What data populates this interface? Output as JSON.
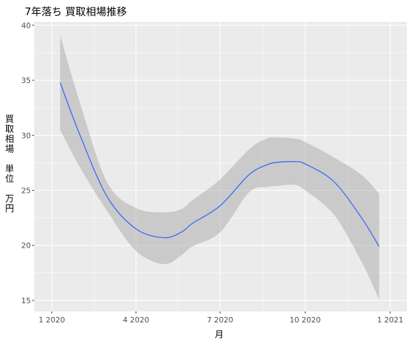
{
  "chart_data": {
    "type": "line",
    "title": "7年落ち 買取相場推移",
    "xlabel": "月",
    "ylabel": "買取相場 単位 万円",
    "ylabel_lines": [
      "買",
      "取",
      "相",
      "場",
      "",
      "単",
      "位",
      "",
      "万",
      "円"
    ],
    "x_tick_labels": [
      "1 2020",
      "4 2020",
      "7 2020",
      "10 2020",
      "1 2021"
    ],
    "y_tick_labels": [
      "15",
      "20",
      "25",
      "30",
      "35",
      "40"
    ],
    "x_ticks": [
      "2020-01-01",
      "2020-04-01",
      "2020-07-01",
      "2020-10-01",
      "2021-01-01"
    ],
    "y_ticks": [
      15,
      20,
      25,
      30,
      35,
      40
    ],
    "xlim": [
      "2019-12-13",
      "2021-01-19"
    ],
    "ylim": [
      14,
      40.3
    ],
    "grid": true,
    "legend": "none",
    "series": [
      {
        "x": [
          "2020-01-10",
          "2020-02-01",
          "2020-03-01",
          "2020-04-01",
          "2020-05-01",
          "2020-05-20",
          "2020-06-01",
          "2020-07-01",
          "2020-08-01",
          "2020-08-20",
          "2020-09-01",
          "2020-09-20",
          "2020-10-01",
          "2020-11-01",
          "2020-12-01",
          "2020-12-20"
        ],
        "y": [
          34.8,
          29.9,
          24.4,
          21.5,
          20.7,
          21.2,
          22.0,
          23.6,
          26.4,
          27.3,
          27.55,
          27.6,
          27.4,
          25.8,
          22.5,
          19.9
        ],
        "lower": [
          30.5,
          27.0,
          23.1,
          19.5,
          18.3,
          19.1,
          19.9,
          21.2,
          24.8,
          25.3,
          25.4,
          25.5,
          25.0,
          22.8,
          18.5,
          15.1
        ],
        "upper": [
          39.1,
          32.8,
          25.7,
          23.4,
          23.0,
          23.3,
          24.1,
          26.0,
          28.7,
          29.7,
          29.8,
          29.7,
          29.4,
          28.0,
          26.4,
          24.7
        ],
        "color": "#3366ff",
        "ribbon_color": "#999999"
      }
    ]
  }
}
